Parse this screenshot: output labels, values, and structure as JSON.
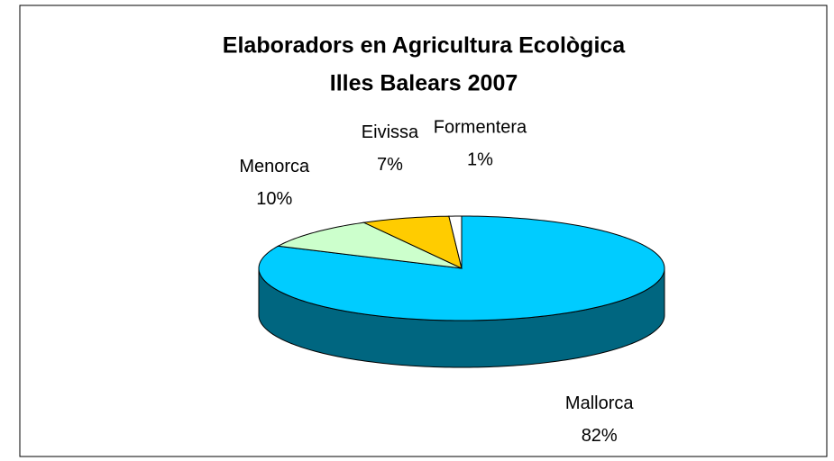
{
  "chart_data": {
    "type": "pie",
    "title": "Elaboradors en Agricultura Ecològica",
    "subtitle": "Illes Balears 2007",
    "categories": [
      "Mallorca",
      "Menorca",
      "Eivissa",
      "Formentera"
    ],
    "values": [
      82,
      10,
      7,
      1
    ],
    "value_labels": [
      "82%",
      "10%",
      "7%",
      "1%"
    ],
    "colors": [
      "#00ccff",
      "#ccffcc",
      "#ffcc00",
      "#ffffff"
    ],
    "three_d": true
  }
}
